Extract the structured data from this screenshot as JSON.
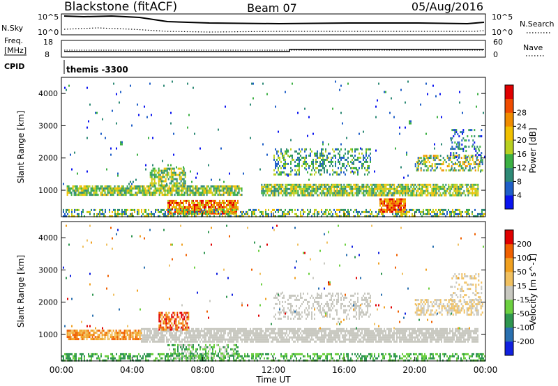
{
  "header": {
    "station": "Blackstone (fitACF)",
    "beam": "Beam 07",
    "date": "05/Aug/2016"
  },
  "top_panels": {
    "nsky_label": "N.Sky",
    "freq_label_1": "Freq.",
    "freq_label_2": "[MHz]",
    "cpid_label": "CPID",
    "noise_left_ticks": [
      "10^5",
      "10^0"
    ],
    "noise_right_ticks": [
      "10^5",
      "10^0"
    ],
    "freq_ticks": [
      "18",
      "8"
    ],
    "nave_ticks": [
      "60",
      "0"
    ],
    "nsearch_label": "N.Search",
    "nave_label": "Nave",
    "cpid_text": "themis -3300"
  },
  "axes": {
    "ylabel": "Slant Range [km]",
    "xlabel": "Time UT",
    "xticks": [
      "00:00",
      "04:00",
      "08:00",
      "12:00",
      "16:00",
      "20:00",
      "00:00"
    ],
    "yticks": [
      "1000",
      "2000",
      "3000",
      "4000"
    ]
  },
  "colorbars": {
    "power": {
      "label": "Power [dB]",
      "ticks": [
        "4",
        "8",
        "12",
        "16",
        "20",
        "24",
        "28"
      ],
      "colors": [
        "#0a14f0",
        "#1f5fc8",
        "#2e8a76",
        "#3cb043",
        "#b8d020",
        "#f0c000",
        "#f08c00",
        "#f04c00",
        "#e00000"
      ]
    },
    "velocity": {
      "label": "Velocity [m s^-1]",
      "ticks": [
        "200",
        "100",
        "50",
        "15",
        "-15",
        "-50",
        "-100",
        "-200"
      ],
      "colors": [
        "#1020e0",
        "#2a70b0",
        "#2f9650",
        "#6cd040",
        "#c8c8c0",
        "#f0c060",
        "#f0a020",
        "#f06000",
        "#e00000"
      ]
    }
  },
  "chart_data": [
    {
      "type": "heatmap",
      "name": "power",
      "x_range_hours": [
        0,
        24
      ],
      "y_range_km": [
        180,
        4500
      ],
      "bands": [
        {
          "t0": 0.3,
          "t1": 10.2,
          "r0": 850,
          "r1": 1150,
          "dens": 0.8,
          "lvl": [
            2,
            5
          ]
        },
        {
          "t0": 11.3,
          "t1": 23.6,
          "r0": 820,
          "r1": 1200,
          "dens": 0.8,
          "lvl": [
            2,
            5
          ]
        },
        {
          "t0": 5.0,
          "t1": 7.0,
          "r0": 1150,
          "r1": 1700,
          "dens": 0.6,
          "lvl": [
            2,
            5
          ]
        },
        {
          "t0": 6.0,
          "t1": 10.0,
          "r0": 300,
          "r1": 700,
          "dens": 0.85,
          "lvl": [
            4,
            8
          ]
        },
        {
          "t0": 0.0,
          "t1": 24.0,
          "r0": 190,
          "r1": 420,
          "dens": 0.5,
          "lvl": [
            1,
            5
          ]
        },
        {
          "t0": 18.0,
          "t1": 19.5,
          "r0": 350,
          "r1": 750,
          "dens": 0.9,
          "lvl": [
            5,
            8
          ]
        },
        {
          "t0": 12.0,
          "t1": 17.5,
          "r0": 1500,
          "r1": 2300,
          "dens": 0.35,
          "lvl": [
            1,
            4
          ]
        },
        {
          "t0": 20.0,
          "t1": 23.8,
          "r0": 1600,
          "r1": 2100,
          "dens": 0.5,
          "lvl": [
            1,
            6
          ]
        },
        {
          "t0": 22.0,
          "t1": 23.8,
          "r0": 2000,
          "r1": 2900,
          "dens": 0.25,
          "lvl": [
            0,
            3
          ]
        },
        {
          "t0": 0.0,
          "t1": 24.0,
          "r0": 1200,
          "r1": 4400,
          "dens": 0.012,
          "lvl": [
            0,
            3
          ]
        }
      ]
    },
    {
      "type": "heatmap",
      "name": "velocity",
      "x_range_hours": [
        0,
        24
      ],
      "y_range_km": [
        180,
        4500
      ],
      "bands": [
        {
          "t0": 0.3,
          "t1": 4.5,
          "r0": 850,
          "r1": 1150,
          "dens": 0.8,
          "lvl": [
            5,
            7
          ]
        },
        {
          "t0": 4.5,
          "t1": 23.6,
          "r0": 780,
          "r1": 1200,
          "dens": 0.8,
          "lvl": [
            4,
            4
          ]
        },
        {
          "t0": 5.5,
          "t1": 7.2,
          "r0": 1150,
          "r1": 1700,
          "dens": 0.6,
          "lvl": [
            6,
            8
          ]
        },
        {
          "t0": 0.0,
          "t1": 24.0,
          "r0": 190,
          "r1": 420,
          "dens": 0.5,
          "lvl": [
            2,
            3
          ]
        },
        {
          "t0": 6.0,
          "t1": 10.0,
          "r0": 300,
          "r1": 700,
          "dens": 0.45,
          "lvl": [
            2,
            4
          ]
        },
        {
          "t0": 12.0,
          "t1": 17.5,
          "r0": 1500,
          "r1": 2300,
          "dens": 0.35,
          "lvl": [
            4,
            4
          ]
        },
        {
          "t0": 20.0,
          "t1": 23.8,
          "r0": 1600,
          "r1": 2100,
          "dens": 0.55,
          "lvl": [
            4,
            5
          ]
        },
        {
          "t0": 22.0,
          "t1": 23.8,
          "r0": 2000,
          "r1": 2900,
          "dens": 0.25,
          "lvl": [
            4,
            5
          ]
        },
        {
          "t0": 0.0,
          "t1": 24.0,
          "r0": 1200,
          "r1": 4400,
          "dens": 0.012,
          "lvl": [
            0,
            8
          ]
        }
      ]
    }
  ]
}
